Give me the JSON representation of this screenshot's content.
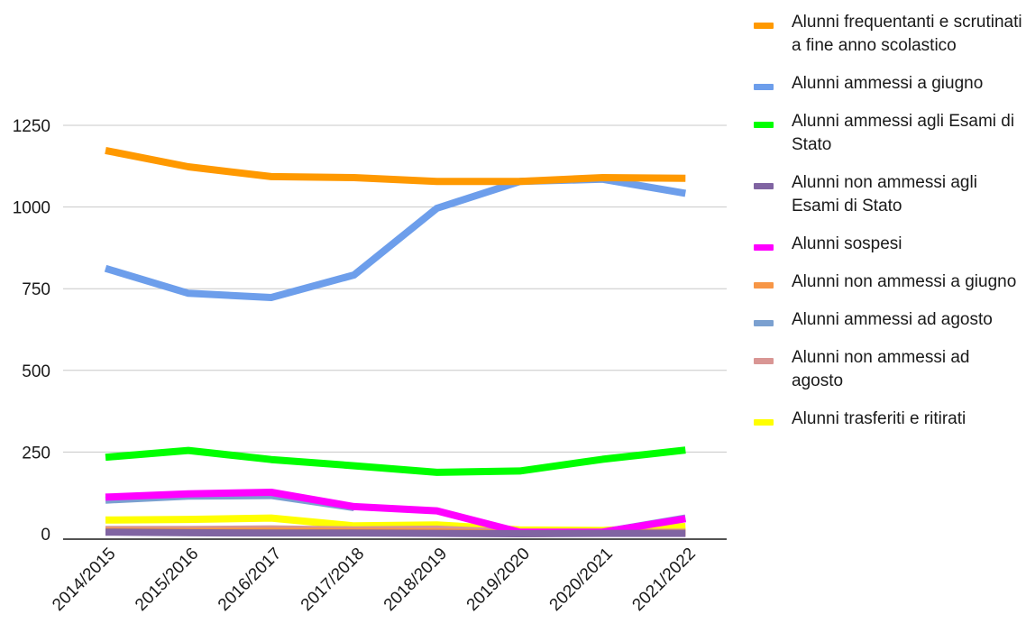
{
  "chart_data": {
    "type": "line",
    "title": "",
    "xlabel": "",
    "ylabel": "",
    "categories": [
      "2014/2015",
      "2015/2016",
      "2016/2017",
      "2017/2018",
      "2018/2019",
      "2019/2020",
      "2020/2021",
      "2021/2022"
    ],
    "ylim": [
      0,
      1250
    ],
    "yticks": [
      0,
      250,
      500,
      750,
      1000,
      1250
    ],
    "grid": true,
    "legend_position": "right",
    "series": [
      {
        "name": "Alunni frequentanti e scrutinati a fine anno scolastico",
        "color": "#FF9900",
        "values": [
          1173,
          1123,
          1093,
          1090,
          1078,
          1078,
          1090,
          1088
        ]
      },
      {
        "name": "Alunni ammessi a giugno",
        "color": "#6D9EEB",
        "values": [
          812,
          736,
          723,
          792,
          996,
          1078,
          1085,
          1042
        ]
      },
      {
        "name": "Alunni ammessi agli Esami di Stato",
        "color": "#00FF00",
        "values": [
          234,
          255,
          227,
          208,
          188,
          192,
          228,
          256
        ]
      },
      {
        "name": "Alunni non ammessi agli Esami di Stato",
        "color": "#8064A2",
        "values": [
          5,
          3,
          2,
          2,
          1,
          0,
          1,
          1
        ]
      },
      {
        "name": "Alunni sospesi",
        "color": "#FF00FF",
        "values": [
          112,
          122,
          127,
          83,
          70,
          5,
          5,
          46
        ]
      },
      {
        "name": "Alunni non ammessi a giugno",
        "color": "#F79646",
        "values": [
          8,
          7,
          8,
          7,
          6,
          0,
          3,
          2
        ]
      },
      {
        "name": "Alunni ammessi ad agosto",
        "color": "#7BA0D0",
        "values": [
          103,
          115,
          117,
          80,
          null,
          null,
          5,
          48
        ]
      },
      {
        "name": "Alunni non ammessi ad agosto",
        "color": "#D99694",
        "values": [
          13,
          13,
          15,
          12,
          14,
          4,
          4,
          5
        ]
      },
      {
        "name": "Alunni trasferiti e ritirati",
        "color": "#FFFF00",
        "values": [
          42,
          44,
          48,
          24,
          27,
          12,
          10,
          22
        ]
      }
    ]
  }
}
